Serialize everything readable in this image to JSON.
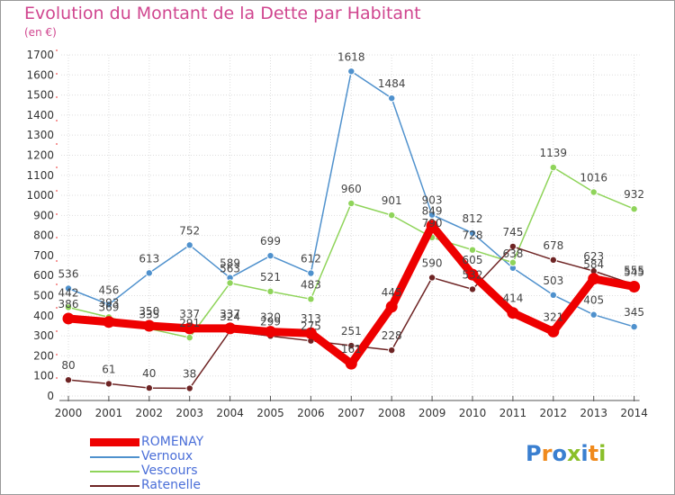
{
  "title": "Evolution du Montant de la Dette par Habitant",
  "subtitle": "(en €)",
  "logo_text": "Proxiti",
  "colors": {
    "title": "#d0468f",
    "legend_text": "#4a6ed8",
    "grid": "#dddddd",
    "axis": "#555555",
    "logo_letters": [
      "#3a7fd0",
      "#f08a1d",
      "#3a7fd0",
      "#8abf2a",
      "#3a7fd0",
      "#f08a1d",
      "#8abf2a"
    ]
  },
  "chart_data": {
    "type": "line",
    "title": "Evolution du Montant de la Dette par Habitant",
    "subtitle": "(en €)",
    "xlabel": "",
    "ylabel": "",
    "ylim": [
      0,
      1700
    ],
    "yticks": [
      0,
      100,
      200,
      300,
      400,
      500,
      600,
      700,
      800,
      900,
      1000,
      1100,
      1200,
      1300,
      1400,
      1500,
      1600,
      1700
    ],
    "x": [
      "2000",
      "2001",
      "2002",
      "2003",
      "2004",
      "2005",
      "2006",
      "2007",
      "2008",
      "2009",
      "2010",
      "2011",
      "2012",
      "2013",
      "2014"
    ],
    "grid": true,
    "legend_position": "bottom-left",
    "series": [
      {
        "name": "Vernoux",
        "color": "#4f91cd",
        "values": [
          536,
          456,
          613,
          752,
          589,
          699,
          612,
          1618,
          1484,
          903,
          812,
          638,
          503,
          405,
          345
        ],
        "labels": [
          "536",
          "456",
          "613",
          "752",
          "589",
          "699",
          "612",
          "1618",
          "1484",
          "903",
          "812",
          "638",
          "503",
          "405",
          "345"
        ]
      },
      {
        "name": "Vescours",
        "color": "#8fd45a",
        "values": [
          442,
          393,
          335,
          291,
          563,
          521,
          483,
          960,
          901,
          790,
          728,
          665,
          1139,
          1016,
          932
        ],
        "labels": [
          "442",
          "393",
          "335",
          "291",
          "563",
          "521",
          "483",
          "960",
          "901",
          "790",
          "728",
          "",
          "1139",
          "1016",
          "932"
        ]
      },
      {
        "name": "Ratenelle",
        "color": "#6e2424",
        "values": [
          80,
          61,
          40,
          38,
          324,
          299,
          275,
          251,
          228,
          590,
          532,
          745,
          678,
          623,
          555
        ],
        "labels": [
          "80",
          "61",
          "40",
          "38",
          "324",
          "299",
          "275",
          "251",
          "228",
          "590",
          "532",
          "745",
          "678",
          "623",
          "555"
        ]
      },
      {
        "name": "ROMENAY",
        "color": "#ee0000",
        "values": [
          386,
          369,
          350,
          337,
          337,
          320,
          313,
          161,
          445,
          849,
          605,
          414,
          321,
          584,
          545
        ],
        "labels": [
          "386",
          "369",
          "350",
          "337",
          "337",
          "320",
          "313",
          "161",
          "445",
          "849",
          "605",
          "414",
          "321",
          "584",
          "545"
        ]
      }
    ],
    "legend": [
      "ROMENAY",
      "Vernoux",
      "Vescours",
      "Ratenelle"
    ]
  }
}
